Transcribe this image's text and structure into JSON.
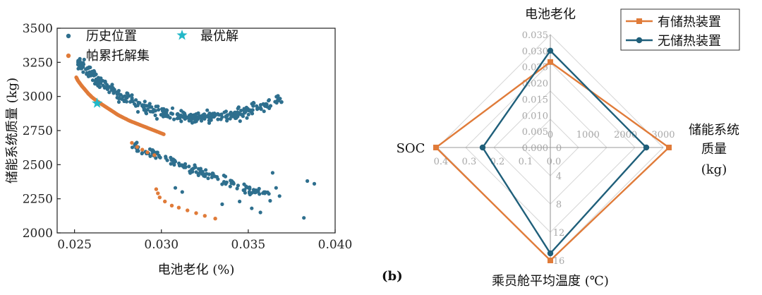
{
  "chart_data": [
    {
      "type": "scatter",
      "xlabel": "电池老化 (%)",
      "ylabel": "储能系统质量 (kg)",
      "xlim": [
        0.024,
        0.04
      ],
      "ylim": [
        2000,
        3500
      ],
      "xticks": [
        "0.025",
        "0.030",
        "0.035",
        "0.040"
      ],
      "yticks": [
        "2000",
        "2250",
        "2500",
        "2750",
        "3000",
        "3250",
        "3500"
      ],
      "legend": {
        "history": "历史位置",
        "optimal": "最优解",
        "pareto": "帕累托解集",
        "placement": "top"
      },
      "colors": {
        "history": "#2e6f8e",
        "pareto": "#e07b39",
        "optimal": "#22b8c8"
      },
      "pareto_front": [
        [
          0.0251,
          3140
        ],
        [
          0.0252,
          3115
        ],
        [
          0.0254,
          3080
        ],
        [
          0.0256,
          3050
        ],
        [
          0.0258,
          3020
        ],
        [
          0.026,
          2995
        ],
        [
          0.0263,
          2965
        ],
        [
          0.0266,
          2940
        ],
        [
          0.0269,
          2915
        ],
        [
          0.0272,
          2890
        ],
        [
          0.0275,
          2865
        ],
        [
          0.0278,
          2845
        ],
        [
          0.0282,
          2820
        ],
        [
          0.0286,
          2800
        ],
        [
          0.029,
          2780
        ],
        [
          0.0294,
          2760
        ],
        [
          0.0298,
          2740
        ],
        [
          0.0302,
          2720
        ]
      ],
      "pareto_branch": [
        [
          0.0283,
          2660
        ],
        [
          0.0286,
          2630
        ],
        [
          0.0289,
          2610
        ],
        [
          0.0292,
          2590
        ],
        [
          0.0296,
          2570
        ],
        [
          0.0297,
          2320
        ],
        [
          0.0298,
          2290
        ],
        [
          0.0299,
          2260
        ],
        [
          0.0302,
          2230
        ],
        [
          0.0306,
          2200
        ],
        [
          0.031,
          2185
        ],
        [
          0.0315,
          2165
        ],
        [
          0.032,
          2145
        ],
        [
          0.0325,
          2125
        ],
        [
          0.0331,
          2105
        ]
      ],
      "optimal_point": [
        0.0263,
        2950
      ]
    },
    {
      "type": "radar",
      "panel_label": "(b)",
      "axes": [
        "电池老化",
        "储能系统质量 (kg)",
        "乘员舱平均温度 (℃)",
        "SOC"
      ],
      "axis_label_lines": [
        [
          "电池老化"
        ],
        [
          "储能系统",
          "质量",
          "(kg)"
        ],
        [
          "乘员舱平均温度 (℃)"
        ],
        [
          "SOC"
        ]
      ],
      "ranges": [
        [
          0,
          0.035
        ],
        [
          0,
          3000
        ],
        [
          0,
          16
        ],
        [
          0,
          0.4
        ]
      ],
      "tick_labels": {
        "aging": [
          "0.000",
          "0.005",
          "0.010",
          "0.015",
          "0.020",
          "0.025",
          "0.030",
          "0.035"
        ],
        "mass": [
          "0",
          "1000",
          "2000",
          "3000"
        ],
        "temp": [
          "0",
          "4",
          "8",
          "12",
          "16"
        ],
        "soc": [
          "0.0",
          "0.1",
          "0.2",
          "0.3",
          "0.4"
        ]
      },
      "series": [
        {
          "name": "有储热装置",
          "color": "#e07b39",
          "marker": "square",
          "values": [
            0.0265,
            3150,
            16,
            0.405
          ]
        },
        {
          "name": "无储热装置",
          "color": "#1f5f7a",
          "marker": "circle",
          "values": [
            0.03,
            2550,
            15,
            0.24
          ]
        }
      ],
      "legend_placement": "top-right"
    }
  ]
}
